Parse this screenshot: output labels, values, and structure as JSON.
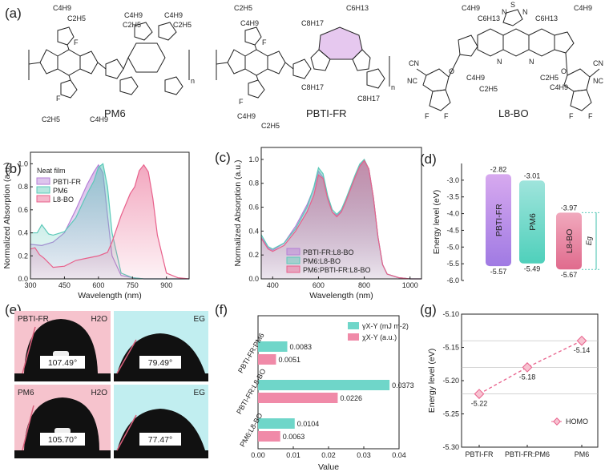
{
  "panel_letters": [
    "(a)",
    "(b)",
    "(c)",
    "(d)",
    "(e)",
    "(f)",
    "(g)"
  ],
  "molecules": {
    "pm6": {
      "name": "PM6",
      "labels": [
        "C4H9",
        "C2H5",
        "F",
        "F",
        "C4H9",
        "C2H5",
        "C4H9",
        "C2H5",
        "C2H5",
        "C4H9",
        "n"
      ]
    },
    "pbtifr": {
      "name": "PBTI-FR",
      "labels": [
        "C2H5",
        "C4H9",
        "F",
        "C6H13",
        "C8H17",
        "C8H17",
        "C8H17",
        "F",
        "C4H9",
        "C2H5",
        "n"
      ]
    },
    "l8bo": {
      "name": "L8-BO",
      "labels": [
        "C4H9",
        "C6H13",
        "C6H13",
        "C4H9",
        "S",
        "N",
        "N",
        "N",
        "N",
        "C4H9",
        "C2H5",
        "C2H5",
        "C4H9",
        "CN",
        "NC",
        "CN",
        "NC",
        "O",
        "O",
        "F",
        "F",
        "F",
        "F"
      ]
    }
  },
  "chart_data": [
    {
      "panel": "(b)",
      "type": "area",
      "xlabel": "Wavelength (nm)",
      "ylabel": "Normalized Absorption (a.u.)",
      "xlim": [
        300,
        1000
      ],
      "ylim": [
        0,
        1.1
      ],
      "xticks": [
        300,
        450,
        600,
        750,
        900
      ],
      "yticks": [
        0,
        0.2,
        0.4,
        0.6,
        0.8,
        1.0
      ],
      "legend_title": "Neat film",
      "legend_position": "top-left",
      "series": [
        {
          "name": "PBTI-FR",
          "color": "#b57fd6",
          "x": [
            300,
            350,
            400,
            450,
            500,
            550,
            580,
            600,
            620,
            640,
            660,
            700,
            750,
            800,
            850,
            900,
            1000
          ],
          "y": [
            0.3,
            0.29,
            0.32,
            0.4,
            0.6,
            0.82,
            0.93,
            0.99,
            0.92,
            0.55,
            0.2,
            0.03,
            0.01,
            0,
            0,
            0,
            0
          ]
        },
        {
          "name": "PM6",
          "color": "#5cc9b9",
          "x": [
            300,
            330,
            350,
            380,
            400,
            450,
            500,
            550,
            580,
            600,
            620,
            640,
            660,
            700,
            750,
            800,
            900,
            1000
          ],
          "y": [
            0.4,
            0.4,
            0.47,
            0.39,
            0.38,
            0.41,
            0.53,
            0.74,
            0.85,
            0.97,
            1.0,
            0.8,
            0.4,
            0.05,
            0.01,
            0,
            0,
            0
          ]
        },
        {
          "name": "L8-BO",
          "color": "#e8608b",
          "x": [
            300,
            320,
            340,
            360,
            400,
            450,
            500,
            550,
            600,
            640,
            660,
            700,
            740,
            760,
            780,
            800,
            820,
            840,
            860,
            900,
            950,
            1000
          ],
          "y": [
            0.26,
            0.27,
            0.21,
            0.18,
            0.1,
            0.11,
            0.16,
            0.18,
            0.2,
            0.23,
            0.32,
            0.55,
            0.74,
            0.8,
            0.94,
            0.99,
            0.93,
            0.7,
            0.38,
            0.05,
            0.01,
            0
          ]
        }
      ]
    },
    {
      "panel": "(c)",
      "type": "area",
      "xlabel": "Wavelength (nm)",
      "ylabel": "Normalized Absorption (a.u.)",
      "xlim": [
        350,
        1050
      ],
      "ylim": [
        0,
        1.1
      ],
      "xticks": [
        400,
        600,
        800,
        1000
      ],
      "yticks": [
        0,
        0.2,
        0.4,
        0.6,
        0.8,
        1.0
      ],
      "legend_position": "bottom-left",
      "series": [
        {
          "name": "PBTI-FR:L8-BO",
          "color": "#b57fd6",
          "x": [
            350,
            380,
            400,
            450,
            500,
            550,
            580,
            600,
            620,
            640,
            660,
            680,
            700,
            720,
            740,
            760,
            780,
            800,
            820,
            840,
            860,
            880,
            900,
            950,
            1000,
            1050
          ],
          "y": [
            0.35,
            0.26,
            0.24,
            0.3,
            0.44,
            0.62,
            0.76,
            0.9,
            0.85,
            0.68,
            0.56,
            0.53,
            0.57,
            0.66,
            0.76,
            0.86,
            0.95,
            0.99,
            0.92,
            0.68,
            0.35,
            0.12,
            0.04,
            0.01,
            0,
            0
          ]
        },
        {
          "name": "PM6:L8-BO",
          "color": "#5cc9b9",
          "x": [
            350,
            380,
            400,
            450,
            500,
            550,
            580,
            600,
            620,
            640,
            660,
            680,
            700,
            720,
            740,
            760,
            780,
            800,
            820,
            840,
            860,
            880,
            900,
            950,
            1000,
            1050
          ],
          "y": [
            0.37,
            0.27,
            0.25,
            0.3,
            0.42,
            0.6,
            0.77,
            0.93,
            0.88,
            0.7,
            0.58,
            0.54,
            0.58,
            0.67,
            0.77,
            0.87,
            0.96,
            1.0,
            0.92,
            0.68,
            0.35,
            0.12,
            0.04,
            0.01,
            0,
            0
          ]
        },
        {
          "name": "PM6:PBTI-FR:L8-BO",
          "color": "#e8608b",
          "x": [
            350,
            380,
            400,
            450,
            500,
            550,
            580,
            600,
            620,
            640,
            660,
            680,
            700,
            720,
            740,
            760,
            780,
            800,
            820,
            840,
            860,
            880,
            900,
            950,
            1000,
            1050
          ],
          "y": [
            0.34,
            0.25,
            0.23,
            0.28,
            0.4,
            0.56,
            0.7,
            0.87,
            0.84,
            0.67,
            0.56,
            0.52,
            0.56,
            0.65,
            0.75,
            0.85,
            0.94,
            0.99,
            0.92,
            0.68,
            0.35,
            0.12,
            0.04,
            0.01,
            0,
            0
          ]
        }
      ]
    },
    {
      "panel": "(d)",
      "type": "bar",
      "ylabel": "Energy level (eV)",
      "ylim": [
        -6.0,
        -2.5
      ],
      "yticks": [
        -6.0,
        -5.5,
        -5.0,
        -4.5,
        -4.0,
        -3.5,
        -3.0
      ],
      "bars": [
        {
          "name": "PBTI-FR",
          "lumo": -2.82,
          "homo": -5.57,
          "lumo_label": "-2.82",
          "homo_label": "-5.57",
          "color_top": "#d7a9ef",
          "color_bottom": "#a07ae3"
        },
        {
          "name": "PM6",
          "lumo": -3.01,
          "homo": -5.49,
          "lumo_label": "-3.01",
          "homo_label": "-5.49",
          "color_top": "#9fe4dc",
          "color_bottom": "#4fd0bb"
        },
        {
          "name": "L8-BO",
          "lumo": -3.97,
          "homo": -5.67,
          "lumo_label": "-3.97",
          "homo_label": "-5.67",
          "color_top": "#f1a9bd",
          "color_bottom": "#e06b8d"
        }
      ],
      "gap_label": "Eg"
    },
    {
      "panel": "(f)",
      "type": "bar",
      "xlabel": "Value",
      "xlim": [
        0,
        0.04
      ],
      "xticks": [
        0,
        0.01,
        0.02,
        0.03,
        0.04
      ],
      "xtick_labels": [
        "0.00",
        "0.01",
        "0.02",
        "0.03",
        "0.04"
      ],
      "categories": [
        "PBTI-FR:PM6",
        "PBTI-FR:L8-BO",
        "PM6:L8-BO"
      ],
      "legend_position": "top-right",
      "series": [
        {
          "name": "γX-Y (mJ m-2)",
          "color": "#6fd6c9",
          "values": [
            0.0083,
            0.0373,
            0.0104
          ],
          "labels": [
            "0.0083",
            "0.0373",
            "0.0104"
          ]
        },
        {
          "name": "χX-Y (a.u.)",
          "color": "#f08aa8",
          "values": [
            0.0051,
            0.0226,
            0.0063
          ],
          "labels": [
            "0.0051",
            "0.0226",
            "0.0063"
          ]
        }
      ]
    },
    {
      "panel": "(g)",
      "type": "line",
      "ylabel": "Energy level (eV)",
      "ylim": [
        -5.3,
        -5.1
      ],
      "yticks": [
        -5.3,
        -5.25,
        -5.2,
        -5.15,
        -5.1
      ],
      "ytick_labels": [
        "-5.30",
        "-5.25",
        "-5.20",
        "-5.15",
        "-5.10"
      ],
      "categories": [
        "PBTI-FR",
        "PBTI-FR:PM6",
        "PM6"
      ],
      "legend_position": "bottom-right",
      "series": [
        {
          "name": "HOMO",
          "color": "#e8608b",
          "values": [
            -5.22,
            -5.18,
            -5.14
          ],
          "labels": [
            "-5.22",
            "-5.18",
            "-5.14"
          ]
        }
      ]
    }
  ],
  "contact_angles": {
    "cells": [
      {
        "liquid": "H2O",
        "material": "PBTI-FR",
        "angle": "107.49°",
        "bg": "#f6c3cd"
      },
      {
        "liquid": "EG",
        "material": "",
        "angle": "79.49°",
        "bg": "#c1eef0"
      },
      {
        "liquid": "H2O",
        "material": "PM6",
        "angle": "105.70°",
        "bg": "#f6c3cd"
      },
      {
        "liquid": "EG",
        "material": "",
        "angle": "77.47°",
        "bg": "#c1eef0"
      }
    ]
  }
}
